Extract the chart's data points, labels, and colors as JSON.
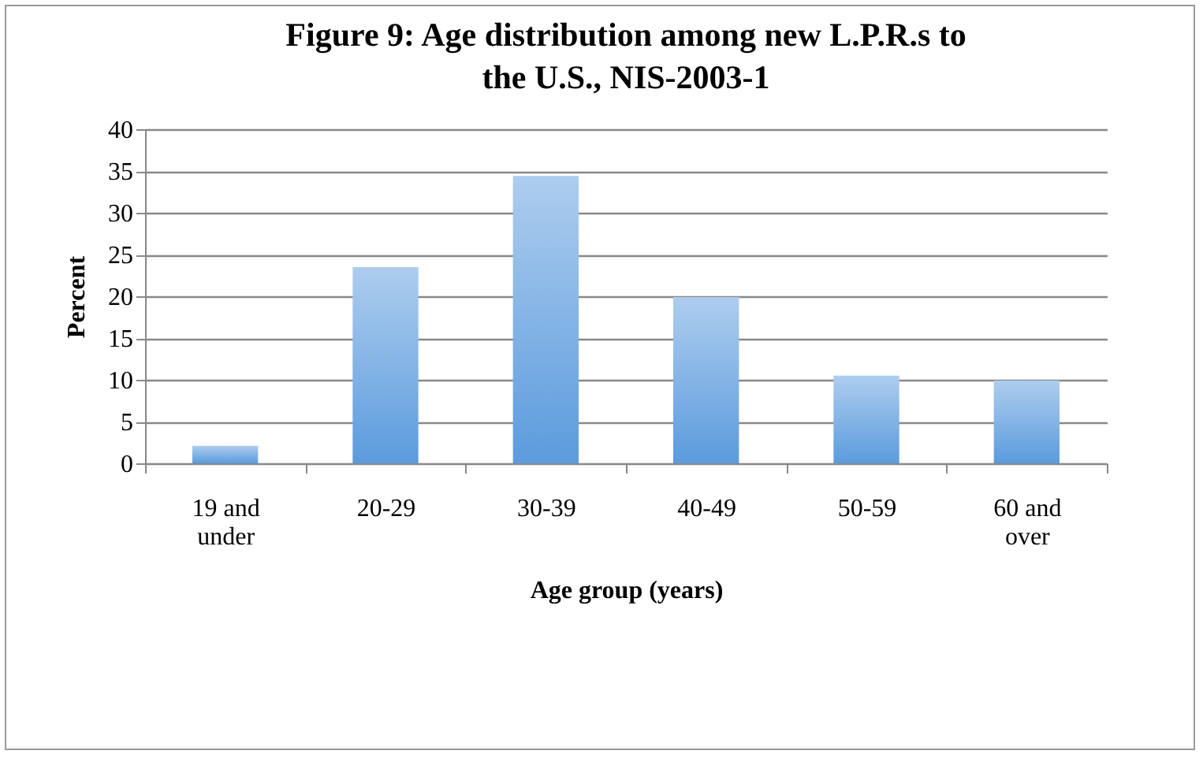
{
  "chart_data": {
    "type": "bar",
    "title": "Figure 9: Age distribution among new L.P.R.s to the U.S., NIS-2003-1",
    "xlabel": "Age group (years)",
    "ylabel": "Percent",
    "categories": [
      "19 and under",
      "20-29",
      "30-39",
      "40-49",
      "50-59",
      "60 and over"
    ],
    "values": [
      2.1,
      23.5,
      34.4,
      19.9,
      10.5,
      9.9
    ],
    "color": "#5b9bdd",
    "ylim": [
      0,
      40
    ],
    "yticks": [
      0,
      5,
      10,
      15,
      20,
      25,
      30,
      35,
      40
    ],
    "grid": "y"
  }
}
